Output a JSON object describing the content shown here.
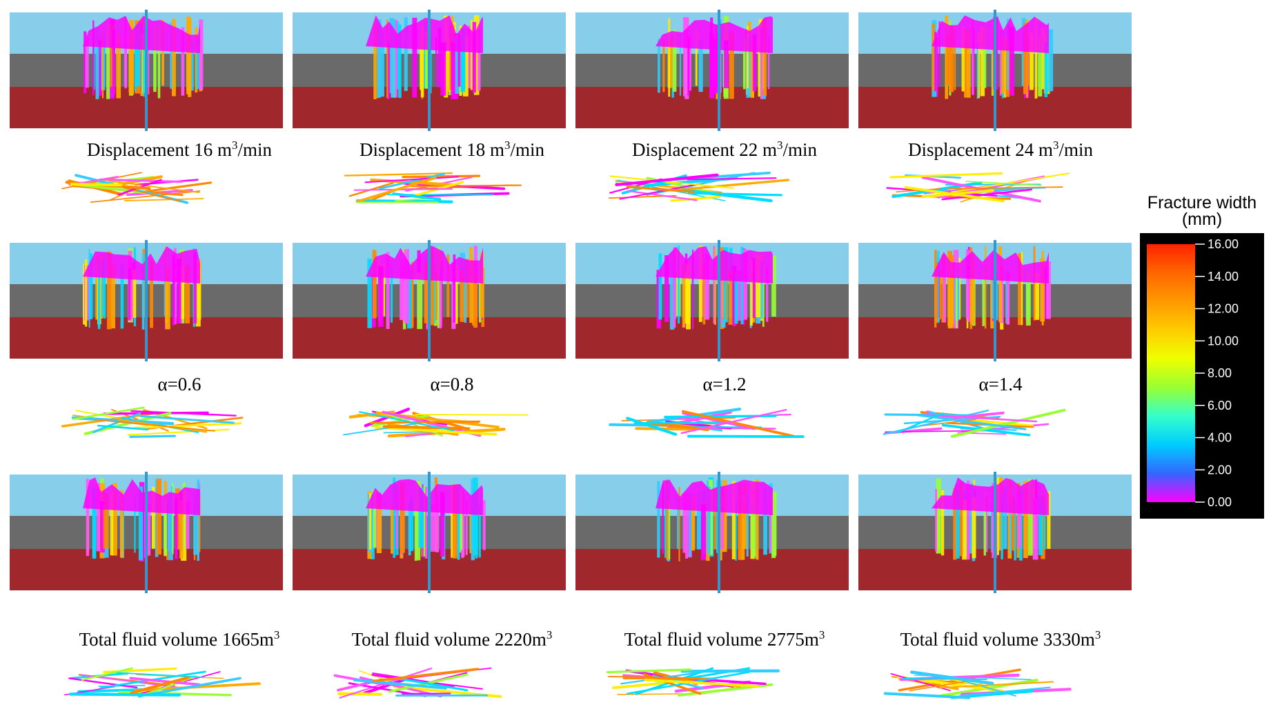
{
  "panels": [
    {
      "row": 0,
      "col": 0,
      "caption": {
        "main": "Displacement  16 m",
        "sup": "3",
        "tail": "/min"
      }
    },
    {
      "row": 0,
      "col": 1,
      "caption": {
        "main": "Displacement  18 m",
        "sup": "3",
        "tail": "/min"
      }
    },
    {
      "row": 0,
      "col": 2,
      "caption": {
        "main": "Displacement  22 m",
        "sup": "3",
        "tail": "/min"
      }
    },
    {
      "row": 0,
      "col": 3,
      "caption": {
        "main": "Displacement  24 m",
        "sup": "3",
        "tail": "/min"
      }
    },
    {
      "row": 1,
      "col": 0,
      "caption": {
        "main": "α=0.6",
        "sup": "",
        "tail": ""
      }
    },
    {
      "row": 1,
      "col": 1,
      "caption": {
        "main": "α=0.8",
        "sup": "",
        "tail": ""
      }
    },
    {
      "row": 1,
      "col": 2,
      "caption": {
        "main": "α=1.2",
        "sup": "",
        "tail": ""
      }
    },
    {
      "row": 1,
      "col": 3,
      "caption": {
        "main": "α=1.4",
        "sup": "",
        "tail": ""
      }
    },
    {
      "row": 2,
      "col": 0,
      "caption": {
        "main": "Total fluid volume 1665m",
        "sup": "3",
        "tail": ""
      }
    },
    {
      "row": 2,
      "col": 1,
      "caption": {
        "main": "Total fluid volume 2220m",
        "sup": "3",
        "tail": ""
      }
    },
    {
      "row": 2,
      "col": 2,
      "caption": {
        "main": "Total fluid volume 2775m",
        "sup": "3",
        "tail": ""
      }
    },
    {
      "row": 2,
      "col": 3,
      "caption": {
        "main": "Total fluid volume 3330m",
        "sup": "3",
        "tail": ""
      }
    }
  ],
  "layers": {
    "top_color": "#87CEEB",
    "middle_color": "#6A6A6A",
    "bottom_color": "#A0282C"
  },
  "colorbar": {
    "title_line1": "Fracture  width",
    "title_line2": "(mm)",
    "ticks": [
      "16.00",
      "14.00",
      "12.00",
      "10.00",
      "8.00",
      "6.00",
      "4.00",
      "2.00",
      "0.00"
    ],
    "gradient": [
      "#FF2200",
      "#FF6600",
      "#FF9900",
      "#FFCC00",
      "#EEFF00",
      "#99FF33",
      "#33FFCC",
      "#00CCFF",
      "#3366FF",
      "#FF00FF"
    ]
  },
  "fracture_palette": [
    "#FF00FF",
    "#FF55FF",
    "#FFEE00",
    "#FFAA00",
    "#FF8800",
    "#00DDFF",
    "#33CCFF",
    "#99FF33"
  ]
}
